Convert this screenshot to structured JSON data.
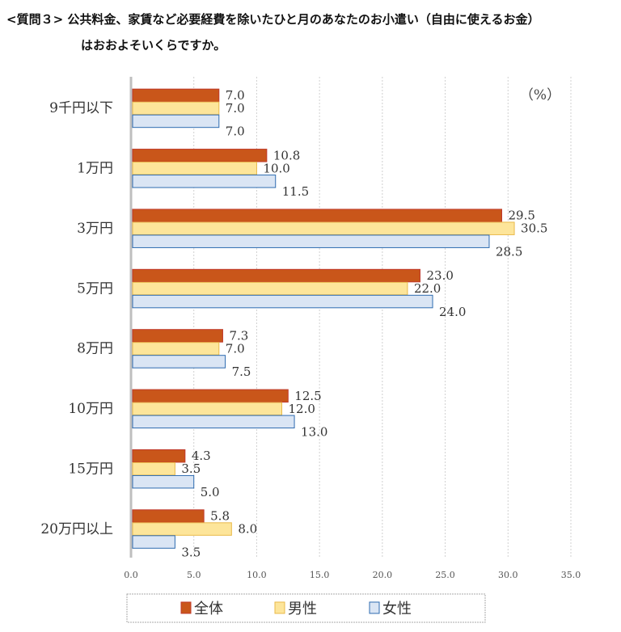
{
  "chart_data": {
    "type": "bar",
    "orientation": "horizontal",
    "title_line1": "<質問３>  公共料金、家賃など必要経費を除いたひと月のあなたのお小遣い（自由に使えるお金）",
    "title_line2": "はおおよそいくらですか。",
    "unit_label": "（%）",
    "categories": [
      "9千円以下",
      "1万円",
      "3万円",
      "5万円",
      "8万円",
      "10万円",
      "15万円",
      "20万円以上"
    ],
    "series": [
      {
        "name": "全体",
        "color": "#c9561a",
        "stroke": "#c0392b",
        "values": [
          7.0,
          10.8,
          29.5,
          23.0,
          7.3,
          12.5,
          4.3,
          5.8
        ]
      },
      {
        "name": "男性",
        "color": "#fde59a",
        "stroke": "#e9b949",
        "values": [
          7.0,
          10.0,
          30.5,
          22.0,
          7.0,
          12.0,
          3.5,
          8.0
        ]
      },
      {
        "name": "女性",
        "color": "#dae5f4",
        "stroke": "#2e6bb0",
        "values": [
          7.0,
          11.5,
          28.5,
          24.0,
          7.5,
          13.0,
          5.0,
          3.5
        ]
      }
    ],
    "xlim": [
      0,
      35
    ],
    "xticks": [
      "0.0",
      "5.0",
      "10.0",
      "15.0",
      "20.0",
      "25.0",
      "30.0",
      "35.0"
    ],
    "grid": true,
    "legend_position": "bottom"
  }
}
